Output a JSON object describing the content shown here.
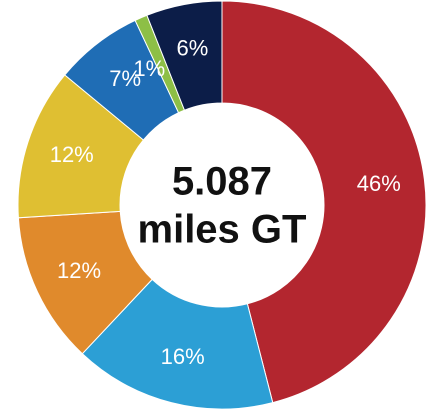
{
  "chart_data": {
    "type": "donut",
    "categories": [
      null,
      null,
      null,
      null,
      null,
      null,
      null
    ],
    "values": [
      46,
      16,
      12,
      12,
      7,
      1,
      6
    ],
    "value_labels": [
      "46%",
      "16%",
      "12%",
      "12%",
      "7%",
      "1%",
      "6%"
    ],
    "colors": [
      "#b3262f",
      "#2c9fd5",
      "#e08a2c",
      "#dfbf32",
      "#1f6db5",
      "#8dbf46",
      "#0c1d48"
    ],
    "center_text": [
      "5.087",
      "miles GT"
    ]
  }
}
